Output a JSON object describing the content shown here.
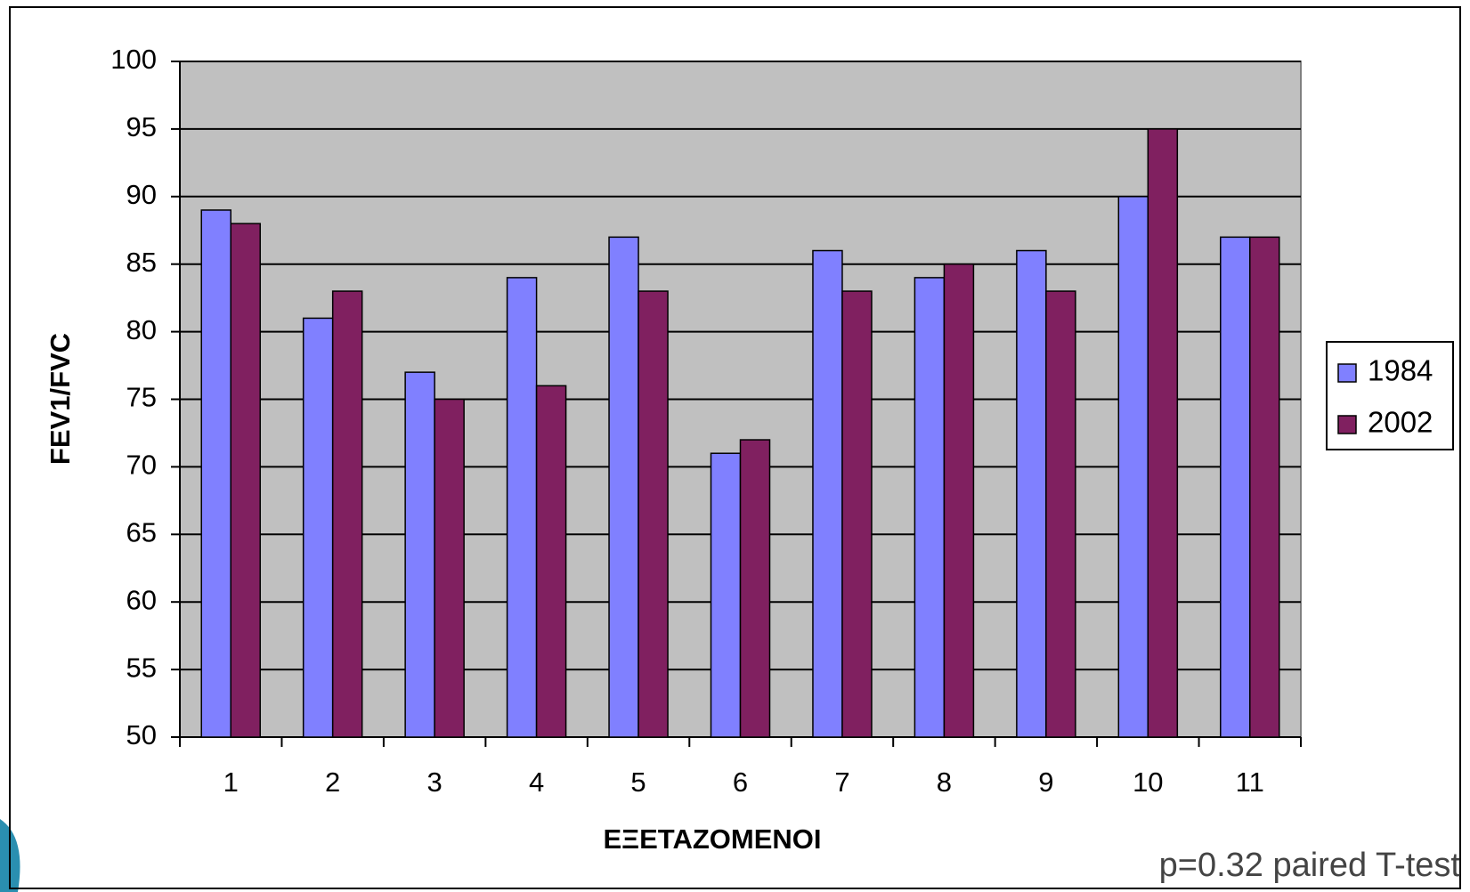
{
  "chart_data": {
    "type": "bar",
    "x_label": "ΕΞΕΤΑΖΟΜΕΝΟΙ",
    "y_label": "FEV1/FVC",
    "annotation": "p=0.32   paired T-test",
    "categories": [
      "1",
      "2",
      "3",
      "4",
      "5",
      "6",
      "7",
      "8",
      "9",
      "10",
      "11"
    ],
    "series": [
      {
        "name": "1984",
        "color": "#8080ff",
        "values": [
          89,
          81,
          77,
          84,
          87,
          71,
          86,
          84,
          86,
          90,
          87
        ]
      },
      {
        "name": "2002",
        "color": "#802060",
        "values": [
          88,
          83,
          75,
          76,
          83,
          72,
          83,
          85,
          83,
          95,
          87
        ]
      }
    ],
    "ylim": [
      50,
      100
    ],
    "yticks": [
      50,
      55,
      60,
      65,
      70,
      75,
      80,
      85,
      90,
      95,
      100
    ],
    "grid": true,
    "legend": "right",
    "plot_background": "#c0c0c0"
  }
}
